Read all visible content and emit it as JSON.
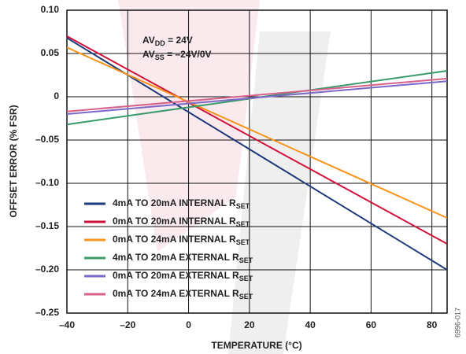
{
  "chart_data": {
    "type": "line",
    "xlabel": "TEMPERATURE (°C)",
    "ylabel": "OFFSET ERROR (% FSR)",
    "figure_id": "6996-017",
    "annotations": [
      {
        "text": "AV",
        "sub": "DD",
        "rest": " = 24V"
      },
      {
        "text": "AV",
        "sub": "SS",
        "rest": " = –24V/0V"
      }
    ],
    "x": [
      -40,
      85
    ],
    "xlim": [
      -40,
      85
    ],
    "xticks": [
      {
        "value": -40,
        "label": "–40"
      },
      {
        "value": -20,
        "label": "–20"
      },
      0,
      20,
      40,
      60,
      80
    ],
    "ylim": [
      -0.25,
      0.1
    ],
    "yticks": [
      {
        "value": 0.1,
        "label": "0.10"
      },
      0.05,
      0,
      {
        "value": -0.05,
        "label": "–0.05"
      },
      {
        "value": -0.1,
        "label": "–0.10"
      },
      {
        "value": -0.15,
        "label": "–0.15"
      },
      {
        "value": -0.2,
        "label": "–0.20"
      },
      {
        "value": -0.25,
        "label": "–0.25"
      }
    ],
    "grid": true,
    "legend": "lower left",
    "series": [
      {
        "name": "4mA TO 20mA INTERNAL R",
        "name_subscript": "SET",
        "color": "#1f3a7a",
        "values": [
          0.068,
          -0.2
        ]
      },
      {
        "name": "0mA TO 20mA INTERNAL R",
        "name_subscript": "SET",
        "color": "#d0103a",
        "values": [
          0.07,
          -0.17
        ]
      },
      {
        "name": "0mA TO 24mA INTERNAL R",
        "name_subscript": "SET",
        "color": "#f7941d",
        "values": [
          0.057,
          -0.14
        ]
      },
      {
        "name": "4mA TO 20mA EXTERNAL R",
        "name_subscript": "SET",
        "color": "#3a9a6a",
        "values": [
          -0.032,
          0.03
        ]
      },
      {
        "name": "0mA TO 20mA EXTERNAL R",
        "name_subscript": "SET",
        "color": "#7b68c8",
        "values": [
          -0.02,
          0.018
        ]
      },
      {
        "name": "0mA TO 24mA EXTERNAL R",
        "name_subscript": "SET",
        "color": "#d9608a",
        "values": [
          -0.017,
          0.021
        ]
      }
    ]
  }
}
